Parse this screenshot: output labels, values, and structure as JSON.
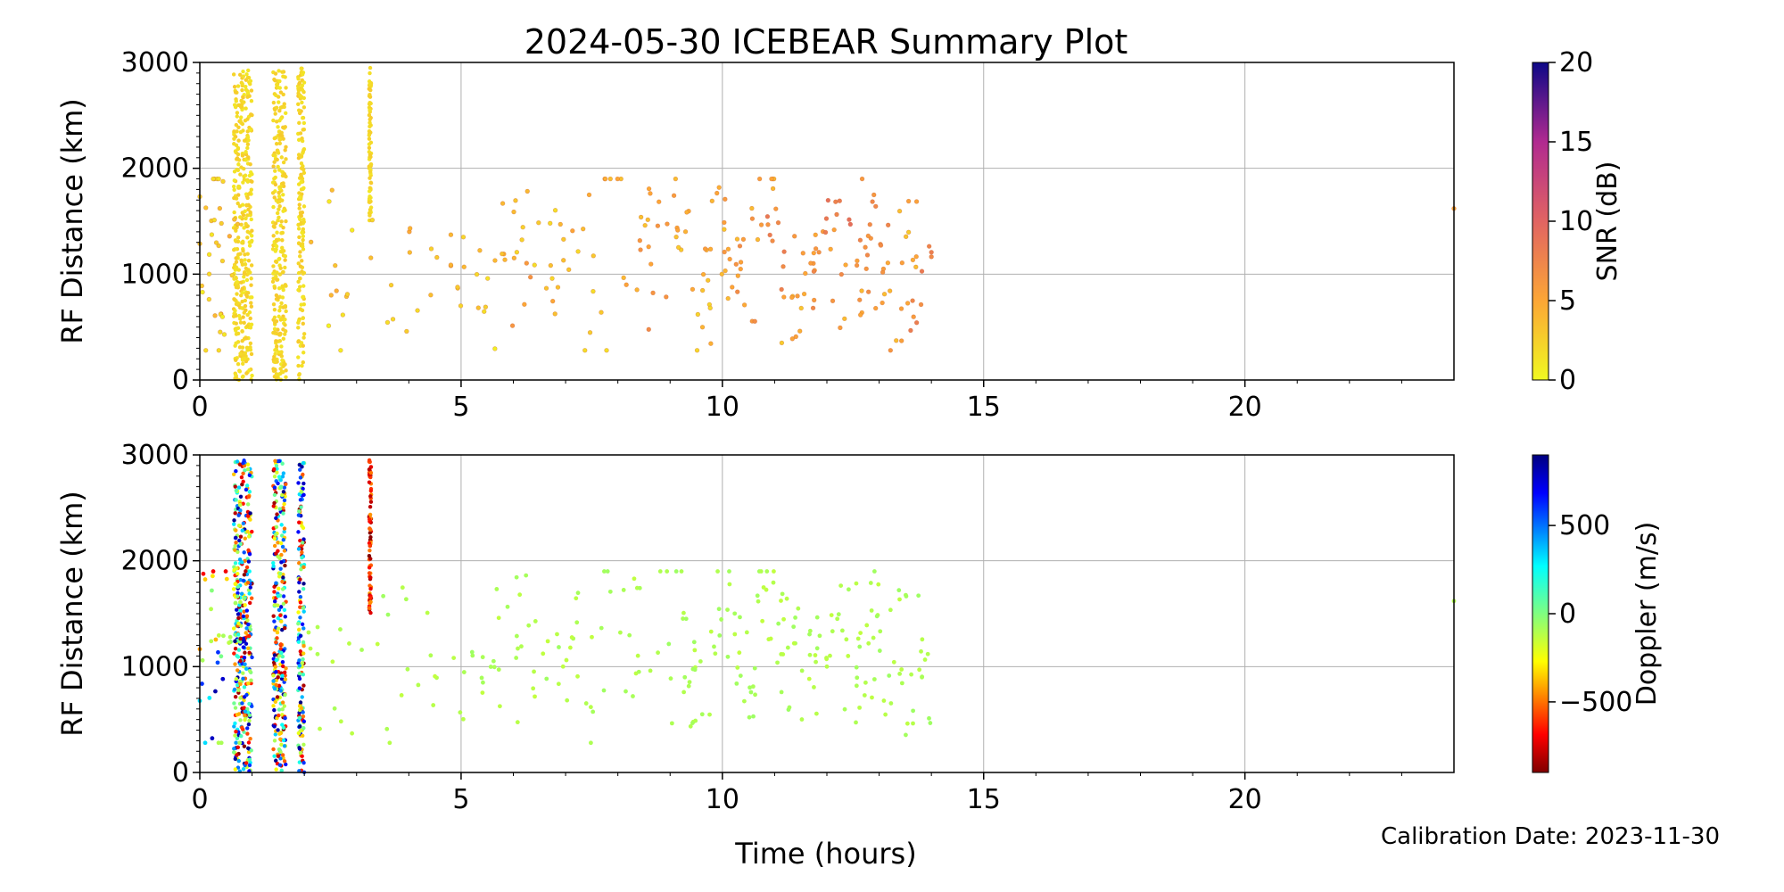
{
  "title": "2024-05-30 ICEBEAR Summary Plot",
  "calibration_text": "Calibration Date: 2023-11-30",
  "x_axis_label": "Time (hours)",
  "chart_data": [
    {
      "type": "scatter",
      "panel": "top",
      "xlabel": "",
      "ylabel": "RF Distance (km)",
      "xlim": [
        0,
        24
      ],
      "ylim": [
        0,
        3000
      ],
      "xticks": [
        0,
        5,
        10,
        15,
        20
      ],
      "yticks": [
        0,
        1000,
        2000,
        3000
      ],
      "grid": true,
      "color_variable": "SNR (dB)",
      "colormap": "plasma_r",
      "clim": [
        0,
        20
      ],
      "colorbar_ticks": [
        0,
        5,
        10,
        15,
        20
      ],
      "colorbar_label": "SNR (dB)",
      "series": [
        {
          "x": [
            0.05,
            0.1,
            0.15,
            0.2,
            0.3,
            0.35,
            0.4,
            0.45,
            0.5,
            0.55,
            0.6,
            2.3,
            2.5,
            2.7,
            2.9,
            3.5,
            3.8,
            4.0,
            4.3,
            4.6,
            4.9,
            5.2,
            5.5,
            5.8,
            6.0,
            6.2,
            6.5,
            6.8,
            7.0,
            7.3,
            7.6,
            7.9,
            8.2,
            8.5,
            8.8,
            9.0,
            9.3,
            9.6,
            9.9,
            10.2,
            10.5,
            10.8,
            11.0,
            11.3,
            11.6,
            11.9,
            12.2,
            12.5,
            12.8,
            13.0,
            13.3,
            13.6,
            13.8,
            24.0
          ],
          "y": [
            1200,
            500,
            1400,
            900,
            2100,
            1500,
            700,
            1700,
            1000,
            300,
            1300,
            1450,
            800,
            300,
            1100,
            1300,
            300,
            1400,
            1000,
            1300,
            900,
            1000,
            700,
            1300,
            1600,
            900,
            1400,
            800,
            1200,
            1300,
            600,
            1800,
            1000,
            1400,
            900,
            1900,
            1200,
            700,
            1500,
            1100,
            900,
            1700,
            1300,
            800,
            1200,
            1000,
            1400,
            900,
            1600,
            1100,
            700,
            1300,
            900,
            1620
          ],
          "c": [
            2,
            1,
            2,
            3,
            1,
            2,
            1,
            2,
            3,
            1,
            2,
            2,
            3,
            1,
            2,
            3,
            2,
            4,
            2,
            3,
            4,
            3,
            2,
            4,
            3,
            5,
            3,
            4,
            3,
            4,
            3,
            4,
            5,
            4,
            6,
            5,
            4,
            3,
            5,
            4,
            6,
            5,
            7,
            4,
            5,
            6,
            8,
            5,
            7,
            6,
            5,
            4,
            7,
            5
          ]
        }
      ],
      "dense_columns": [
        {
          "x_range": [
            0.65,
            1.0
          ],
          "y_range": [
            0,
            2950
          ],
          "c": 1
        },
        {
          "x_range": [
            1.4,
            1.65
          ],
          "y_range": [
            0,
            2950
          ],
          "c": 1
        },
        {
          "x_range": [
            1.88,
            2.0
          ],
          "y_range": [
            0,
            2950
          ],
          "c": 1
        },
        {
          "x_range": [
            3.24,
            3.28
          ],
          "y_range": [
            1500,
            2950
          ],
          "c": 1
        }
      ]
    },
    {
      "type": "scatter",
      "panel": "bottom",
      "xlabel": "Time (hours)",
      "ylabel": "RF Distance (km)",
      "xlim": [
        0,
        24
      ],
      "ylim": [
        0,
        3000
      ],
      "xticks": [
        0,
        5,
        10,
        15,
        20
      ],
      "yticks": [
        0,
        1000,
        2000,
        3000
      ],
      "grid": true,
      "color_variable": "Doppler (m/s)",
      "colormap": "jet_r",
      "clim": [
        -900,
        900
      ],
      "colorbar_ticks": [
        -500,
        0,
        500
      ],
      "colorbar_label": "Doppler (m/s)",
      "series": [
        {
          "x": [
            0.05,
            0.1,
            0.15,
            0.2,
            0.3,
            0.35,
            0.4,
            0.45,
            0.5,
            0.55,
            0.6,
            2.3,
            2.5,
            2.7,
            2.9,
            3.5,
            3.8,
            4.0,
            4.3,
            4.6,
            4.9,
            5.2,
            5.5,
            5.8,
            6.0,
            6.2,
            6.5,
            6.8,
            7.0,
            7.3,
            7.6,
            7.9,
            8.2,
            8.5,
            8.8,
            9.0,
            9.3,
            9.6,
            9.9,
            10.2,
            10.5,
            10.8,
            11.0,
            11.3,
            11.6,
            11.9,
            12.2,
            12.5,
            12.8,
            13.0,
            13.3,
            13.6,
            13.8,
            24.0
          ],
          "y": [
            1200,
            500,
            1400,
            900,
            2100,
            1500,
            700,
            1700,
            1000,
            300,
            1300,
            1450,
            800,
            300,
            1100,
            1300,
            300,
            1400,
            1000,
            1300,
            900,
            1000,
            700,
            1300,
            1600,
            900,
            1400,
            800,
            1200,
            1300,
            600,
            1800,
            1000,
            1400,
            900,
            1900,
            1200,
            700,
            1500,
            1100,
            900,
            1700,
            1300,
            800,
            1200,
            1000,
            1400,
            900,
            1600,
            1100,
            700,
            1300,
            900,
            1620
          ],
          "c": [
            -100,
            300,
            -400,
            600,
            -700,
            0,
            800,
            -300,
            -100,
            -100,
            -100,
            -100,
            -100,
            -100,
            -100,
            -100,
            -100,
            -100,
            -100,
            -100,
            -100,
            -100,
            -100,
            -100,
            -100,
            -100,
            -100,
            -100,
            -100,
            -100,
            -100,
            -100,
            -100,
            -100,
            -100,
            -100,
            -100,
            -100,
            -100,
            -100,
            -100,
            -100,
            -100,
            -100,
            -100,
            -100,
            -100,
            -100,
            -100,
            -100,
            -100,
            -100,
            -100,
            -100
          ]
        }
      ],
      "dense_columns": [
        {
          "x_range": [
            0.65,
            1.0
          ],
          "y_range": [
            0,
            2950
          ],
          "c_range": [
            -900,
            900
          ]
        },
        {
          "x_range": [
            1.4,
            1.65
          ],
          "y_range": [
            0,
            2950
          ],
          "c_range": [
            -900,
            900
          ]
        },
        {
          "x_range": [
            1.88,
            2.0
          ],
          "y_range": [
            0,
            2950
          ],
          "c_range": [
            -900,
            900
          ]
        },
        {
          "x_range": [
            3.24,
            3.28
          ],
          "y_range": [
            1500,
            2950
          ],
          "c_range": [
            -900,
            -400
          ]
        }
      ]
    }
  ]
}
